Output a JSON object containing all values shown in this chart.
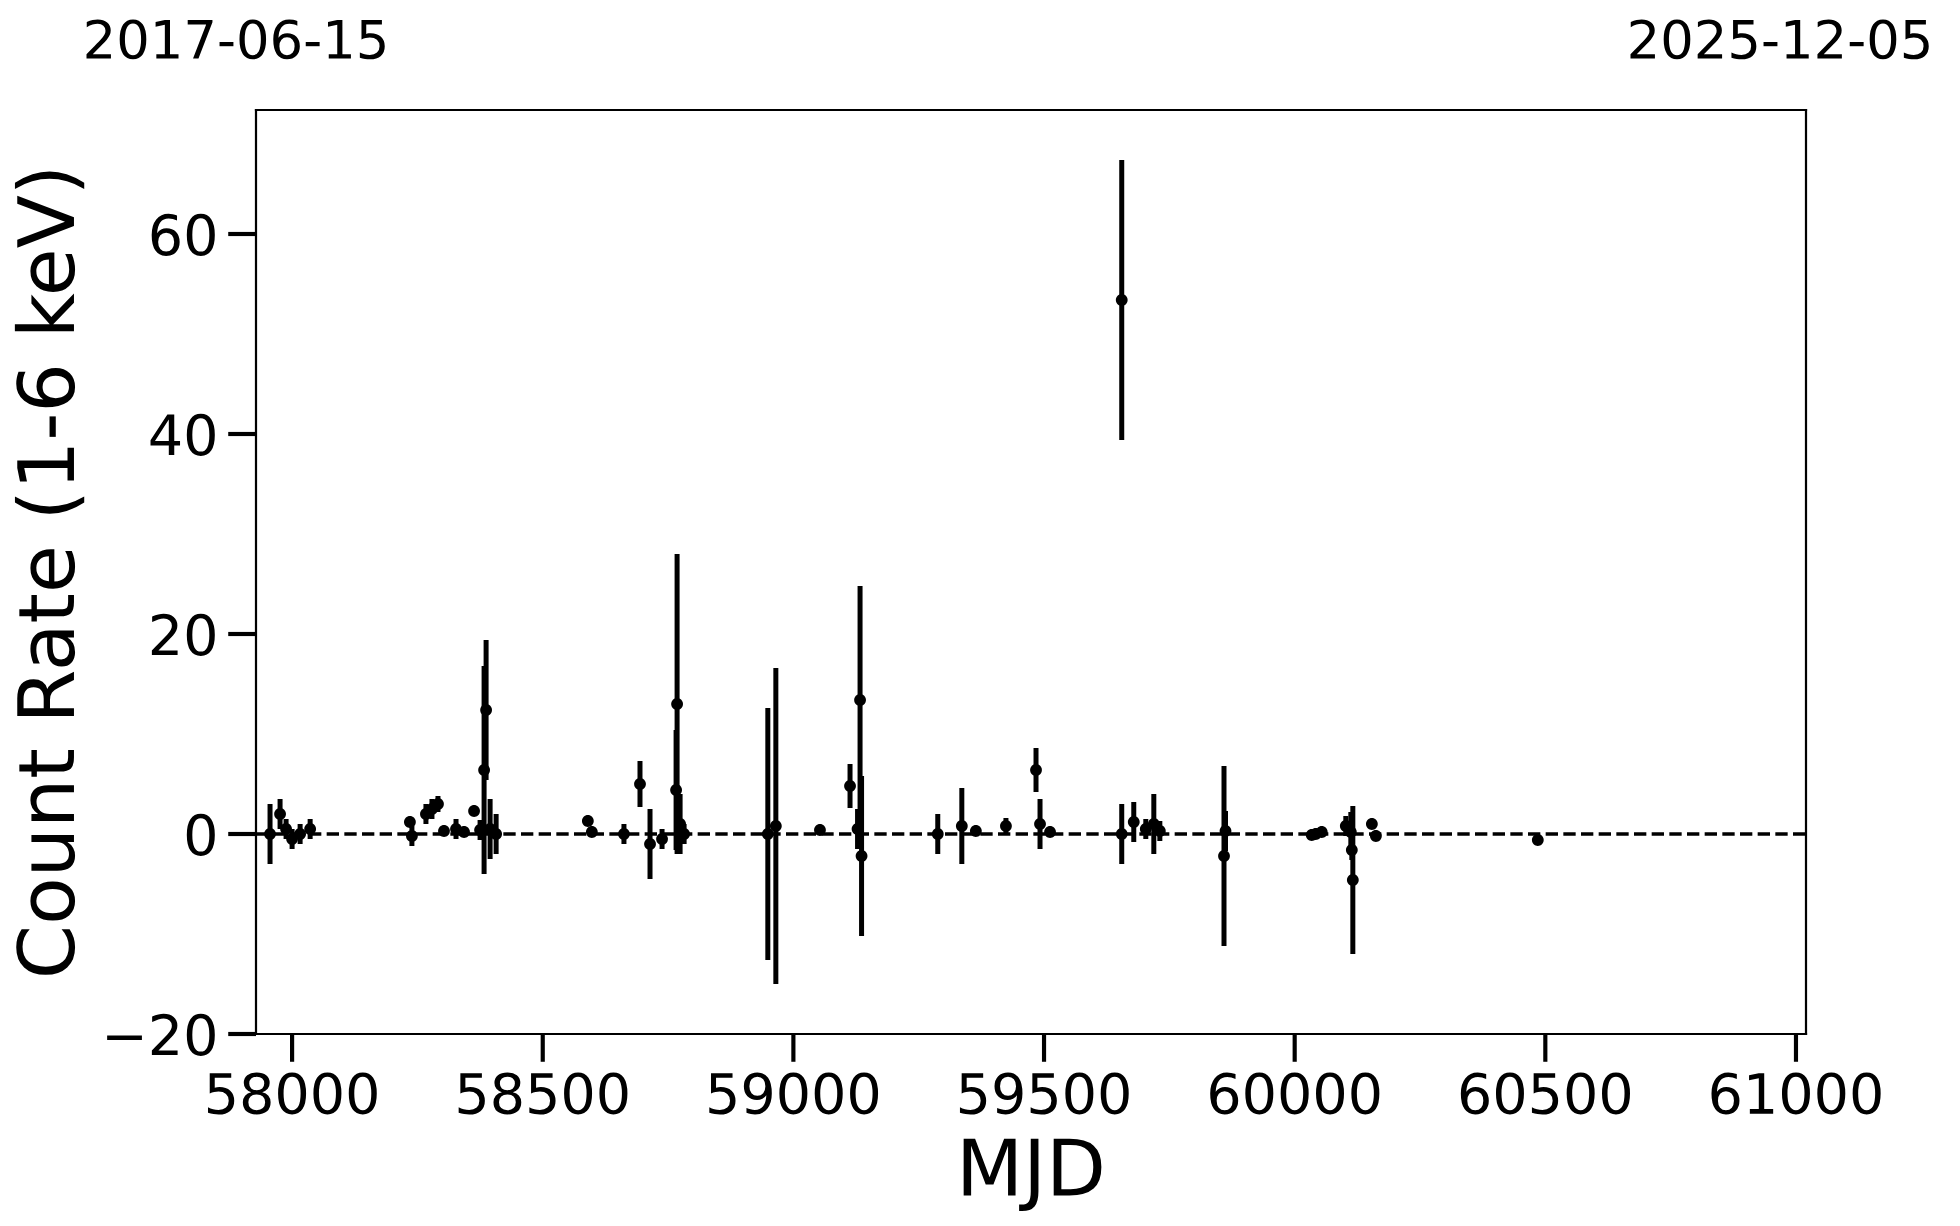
{
  "chart_data": {
    "type": "scatter",
    "xlabel": "MJD",
    "ylabel": "Count Rate (1-6 keV)",
    "annotations": [
      "2017-06-15",
      "2025-12-05"
    ],
    "x": [
      57956,
      57976,
      57988,
      58000,
      58016,
      58036,
      58235,
      58239,
      58267,
      58279,
      58291,
      58303,
      58327,
      58343,
      58363,
      58375,
      58383,
      58387,
      58395,
      58407,
      58590,
      58598,
      58662,
      58694,
      58714,
      58738,
      58766,
      58768,
      58774,
      58782,
      58949,
      58965,
      59053,
      59113,
      59128,
      59133,
      59136,
      59288,
      59336,
      59364,
      59424,
      59484,
      59492,
      59512,
      59655,
      59655,
      59679,
      59703,
      59719,
      59731,
      59859,
      59862,
      60034,
      60042,
      60054,
      60102,
      60112,
      60114,
      60116,
      60154,
      60162,
      60485
    ],
    "series": [
      {
        "color": "#000000",
        "values": [
          0,
          2,
          0.5,
          -0.5,
          0,
          0.5,
          1.2,
          -0.2,
          2,
          2.5,
          3,
          0.3,
          0.5,
          0.2,
          2.3,
          0.4,
          6.4,
          12.4,
          0.5,
          0,
          1.3,
          0.2,
          0,
          5,
          -1,
          -0.5,
          4.4,
          13,
          1,
          0,
          0,
          0.8,
          0.4,
          4.8,
          0.5,
          13.4,
          -2.2,
          0,
          0.8,
          0.3,
          0.8,
          6.4,
          1,
          0.2,
          53.4,
          0,
          1.2,
          0.5,
          1,
          0.3,
          -2.2,
          0.3,
          -0.1,
          0,
          0.2,
          0.8,
          0.2,
          -1.6,
          -4.6,
          1,
          -0.2,
          -0.6
        ],
        "errors": [
          3,
          1.5,
          1,
          1,
          1,
          1,
          null,
          1,
          1,
          1,
          0.8,
          null,
          1,
          null,
          0.5,
          1,
          10.4,
          7,
          3,
          2,
          null,
          null,
          1,
          2.3,
          3.5,
          1,
          6,
          15,
          3,
          1,
          12.6,
          15.8,
          null,
          2.2,
          2,
          11.4,
          8,
          2,
          3.8,
          null,
          0.8,
          2.2,
          2.5,
          null,
          14,
          3,
          2,
          1,
          3,
          1,
          9,
          2,
          null,
          null,
          null,
          1,
          2,
          1,
          7.4,
          null,
          null,
          null
        ]
      }
    ],
    "xlim": [
      57928,
      61020
    ],
    "ylim": [
      -20,
      72.4
    ],
    "xticks": [
      58000,
      58500,
      59000,
      59500,
      60000,
      60500,
      61000
    ],
    "yticks": [
      -20,
      0,
      20,
      40,
      60
    ],
    "ref_lines": [
      {
        "axis": "y",
        "value": 0,
        "color": "#000000",
        "line_style": "dashed"
      }
    ],
    "marker": "circle",
    "grid": false
  }
}
